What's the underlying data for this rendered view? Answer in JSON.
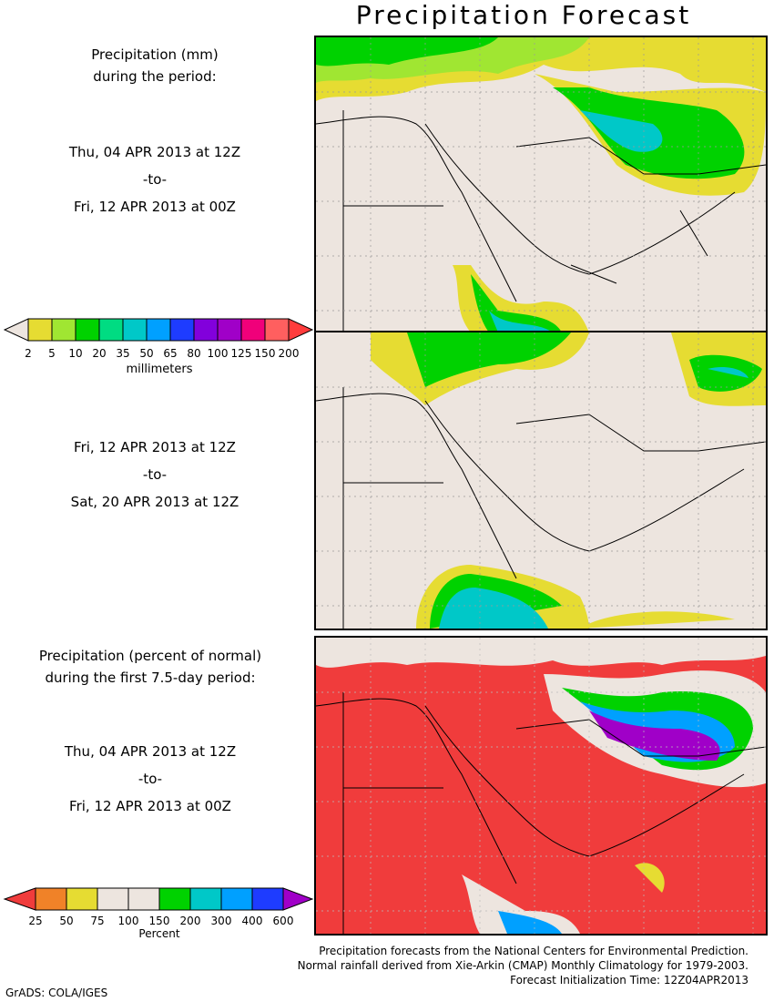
{
  "title": "Precipitation Forecast",
  "left": {
    "amount_header": [
      "Precipitation (mm)",
      "during the period:"
    ],
    "period1": {
      "start": "Thu, 04 APR 2013 at 12Z",
      "to": "-to-",
      "end": "Fri, 12 APR 2013 at 00Z"
    },
    "period2": {
      "start": "Fri, 12 APR 2013 at 12Z",
      "to": "-to-",
      "end": "Sat, 20 APR 2013 at 12Z"
    },
    "percent_header": [
      "Precipitation (percent of normal)",
      "during the first 7.5-day period:"
    ],
    "period3": {
      "start": "Thu, 04 APR 2013 at 12Z",
      "to": "-to-",
      "end": "Fri, 12 APR 2013 at 00Z"
    }
  },
  "colorbar_mm": {
    "unit": "millimeters",
    "labels": [
      "2",
      "5",
      "10",
      "20",
      "35",
      "50",
      "65",
      "80",
      "100",
      "125",
      "150",
      "200"
    ],
    "colors": [
      "#ede5df",
      "#e6dc32",
      "#a0e632",
      "#00d200",
      "#00dc82",
      "#00c8c8",
      "#00a0ff",
      "#1e3cff",
      "#8200dc",
      "#a000c8",
      "#f0007a",
      "#ff5f5f",
      "#ff3c3c"
    ]
  },
  "colorbar_pct": {
    "unit": "Percent",
    "labels": [
      "25",
      "50",
      "75",
      "100",
      "150",
      "200",
      "300",
      "400",
      "600"
    ],
    "colors": [
      "#f03c3c",
      "#f08228",
      "#e6dc32",
      "#ede5df",
      "#ede5df",
      "#00d200",
      "#00c8c8",
      "#00a0ff",
      "#1e3cff",
      "#a000c8"
    ]
  },
  "footer": [
    "Precipitation forecasts from the National Centers for Environmental Prediction.",
    "Normal rainfall derived from Xie-Arkin (CMAP) Monthly Climatology for 1979-2003.",
    "Forecast Initialization Time: 12Z04APR2013"
  ],
  "credit": "GrADS: COLA/IGES"
}
